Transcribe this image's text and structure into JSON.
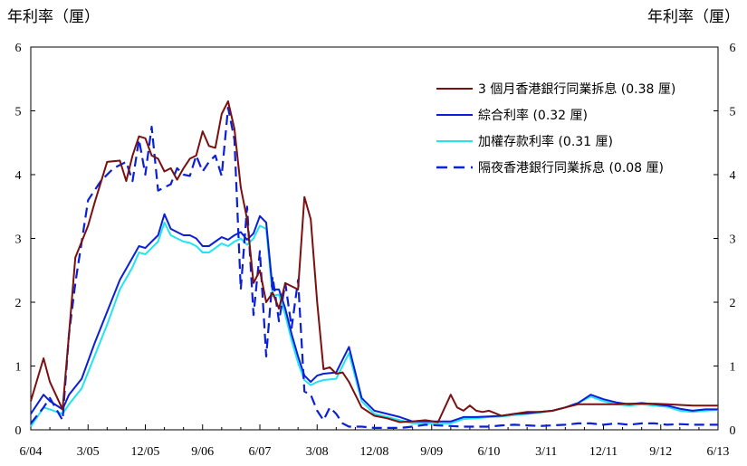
{
  "chart_data": {
    "type": "line",
    "ylabel_left": "年利率（厘）",
    "ylabel_right": "年利率（厘）",
    "ylim": [
      0,
      6
    ],
    "yticks": [
      "0",
      "1",
      "2",
      "3",
      "4",
      "5",
      "6"
    ],
    "xlabels": [
      "6/04",
      "3/05",
      "12/05",
      "9/06",
      "6/07",
      "3/08",
      "12/08",
      "9/09",
      "6/10",
      "3/11",
      "12/11",
      "9/12",
      "6/13"
    ],
    "grid": false,
    "legend_position": "top-right",
    "series": [
      {
        "name": "3 個月香港銀行同業拆息",
        "value_label": "(0.38 厘)",
        "color": "#7a1010",
        "dash": "solid",
        "x": [
          0,
          2,
          3,
          5,
          6,
          7,
          9,
          10,
          12,
          14,
          15,
          16,
          17,
          18,
          19,
          20,
          21,
          22,
          23,
          24,
          25,
          26,
          27,
          28,
          29,
          30,
          31,
          32,
          33,
          34,
          35,
          36,
          37,
          38,
          39,
          40,
          41,
          42,
          43,
          44,
          45,
          46,
          47,
          48,
          49,
          50,
          52,
          54,
          56,
          58,
          60,
          62,
          64,
          66,
          67,
          68,
          69,
          70,
          71,
          72,
          74,
          76,
          78,
          80,
          82,
          84,
          86,
          88,
          90,
          92,
          94,
          96,
          98,
          100,
          102,
          104,
          106,
          108
        ],
        "values": [
          0.45,
          1.12,
          0.75,
          0.32,
          1.5,
          2.7,
          3.2,
          3.55,
          4.2,
          4.22,
          3.9,
          4.3,
          4.6,
          4.57,
          4.3,
          4.25,
          4.05,
          4.1,
          3.92,
          4.1,
          4.25,
          4.3,
          4.68,
          4.45,
          4.42,
          4.95,
          5.15,
          4.72,
          3.8,
          3.3,
          2.3,
          2.5,
          2.0,
          2.15,
          1.9,
          2.3,
          2.25,
          2.2,
          3.65,
          3.3,
          2.0,
          0.95,
          0.98,
          0.88,
          0.9,
          0.75,
          0.35,
          0.22,
          0.18,
          0.12,
          0.13,
          0.15,
          0.12,
          0.55,
          0.35,
          0.3,
          0.38,
          0.3,
          0.28,
          0.3,
          0.22,
          0.25,
          0.28,
          0.28,
          0.3,
          0.35,
          0.4,
          0.4,
          0.4,
          0.4,
          0.41,
          0.41,
          0.41,
          0.4,
          0.39,
          0.38,
          0.38,
          0.38
        ]
      },
      {
        "name": "綜合利率",
        "value_label": "(0.32 厘)",
        "color": "#0a1fd6",
        "dash": "solid",
        "x": [
          0,
          2,
          3,
          5,
          6,
          8,
          10,
          12,
          14,
          16,
          17,
          18,
          19,
          20,
          21,
          22,
          23,
          24,
          25,
          26,
          27,
          28,
          29,
          30,
          31,
          32,
          33,
          34,
          35,
          36,
          37,
          38,
          39,
          40,
          41,
          42,
          43,
          44,
          45,
          46,
          48,
          50,
          52,
          54,
          56,
          58,
          60,
          62,
          64,
          66,
          68,
          70,
          72,
          74,
          76,
          78,
          80,
          82,
          84,
          86,
          88,
          90,
          92,
          94,
          96,
          98,
          100,
          102,
          104,
          106,
          108
        ],
        "values": [
          0.25,
          0.55,
          0.45,
          0.32,
          0.55,
          0.8,
          1.35,
          1.85,
          2.35,
          2.7,
          2.88,
          2.85,
          2.95,
          3.05,
          3.38,
          3.15,
          3.1,
          3.05,
          3.05,
          3.0,
          2.88,
          2.88,
          2.95,
          3.02,
          2.98,
          3.05,
          3.1,
          2.98,
          3.08,
          3.35,
          3.25,
          2.2,
          2.2,
          1.9,
          1.5,
          1.15,
          0.85,
          0.75,
          0.85,
          0.88,
          0.9,
          1.3,
          0.5,
          0.3,
          0.25,
          0.2,
          0.13,
          0.13,
          0.13,
          0.13,
          0.2,
          0.2,
          0.21,
          0.22,
          0.25,
          0.26,
          0.28,
          0.3,
          0.35,
          0.42,
          0.55,
          0.48,
          0.43,
          0.4,
          0.42,
          0.4,
          0.38,
          0.33,
          0.3,
          0.32,
          0.32
        ]
      },
      {
        "name": "加權存款利率",
        "value_label": "(0.31 厘)",
        "color": "#22e3f0",
        "dash": "solid",
        "x": [
          0,
          2,
          3,
          5,
          6,
          8,
          10,
          12,
          14,
          16,
          17,
          18,
          19,
          20,
          21,
          22,
          23,
          24,
          25,
          26,
          27,
          28,
          29,
          30,
          31,
          32,
          33,
          34,
          35,
          36,
          37,
          38,
          39,
          40,
          41,
          42,
          43,
          44,
          45,
          46,
          48,
          50,
          52,
          54,
          56,
          58,
          60,
          62,
          64,
          66,
          68,
          70,
          72,
          74,
          76,
          78,
          80,
          82,
          84,
          86,
          88,
          90,
          92,
          94,
          96,
          98,
          100,
          102,
          104,
          106,
          108
        ],
        "values": [
          0.05,
          0.35,
          0.32,
          0.25,
          0.4,
          0.65,
          1.15,
          1.65,
          2.2,
          2.55,
          2.78,
          2.75,
          2.85,
          2.95,
          3.25,
          3.05,
          3.0,
          2.95,
          2.93,
          2.88,
          2.78,
          2.78,
          2.85,
          2.92,
          2.88,
          2.95,
          3.0,
          2.9,
          3.0,
          3.2,
          3.15,
          2.1,
          2.12,
          1.8,
          1.4,
          1.05,
          0.78,
          0.7,
          0.75,
          0.78,
          0.8,
          1.2,
          0.45,
          0.25,
          0.2,
          0.15,
          0.1,
          0.1,
          0.1,
          0.1,
          0.17,
          0.18,
          0.2,
          0.21,
          0.23,
          0.25,
          0.27,
          0.3,
          0.35,
          0.42,
          0.52,
          0.45,
          0.4,
          0.38,
          0.4,
          0.38,
          0.36,
          0.3,
          0.28,
          0.3,
          0.31
        ]
      },
      {
        "name": "隔夜香港銀行同業拆息",
        "value_label": "(0.08 厘)",
        "color": "#0a1fd6",
        "dash": "dashed",
        "x": [
          0,
          2,
          3,
          5,
          6,
          7,
          9,
          11,
          13,
          15,
          16,
          17,
          18,
          19,
          20,
          21,
          22,
          23,
          24,
          25,
          26,
          27,
          28,
          29,
          30,
          31,
          32,
          33,
          34,
          35,
          36,
          37,
          38,
          39,
          40,
          41,
          42,
          43,
          44,
          45,
          46,
          47,
          48,
          49,
          50,
          52,
          54,
          56,
          58,
          60,
          62,
          64,
          66,
          68,
          70,
          72,
          74,
          76,
          78,
          80,
          82,
          84,
          86,
          88,
          90,
          92,
          94,
          96,
          98,
          100,
          102,
          104,
          106,
          108
        ],
        "values": [
          0.1,
          0.35,
          0.5,
          0.15,
          1.5,
          2.3,
          3.6,
          3.9,
          4.1,
          4.2,
          3.9,
          4.55,
          4.0,
          4.75,
          3.75,
          3.8,
          3.85,
          4.1,
          4.0,
          3.98,
          4.3,
          4.05,
          4.2,
          4.3,
          3.98,
          5.05,
          4.55,
          2.2,
          3.5,
          1.8,
          2.8,
          1.15,
          2.4,
          1.7,
          2.3,
          1.6,
          2.35,
          0.6,
          0.55,
          0.3,
          0.15,
          0.35,
          0.25,
          0.1,
          0.05,
          0.05,
          0.03,
          0.03,
          0.03,
          0.05,
          0.08,
          0.07,
          0.06,
          0.05,
          0.05,
          0.05,
          0.07,
          0.08,
          0.07,
          0.06,
          0.07,
          0.08,
          0.1,
          0.1,
          0.08,
          0.1,
          0.08,
          0.1,
          0.1,
          0.08,
          0.09,
          0.08,
          0.08,
          0.08
        ]
      }
    ]
  }
}
